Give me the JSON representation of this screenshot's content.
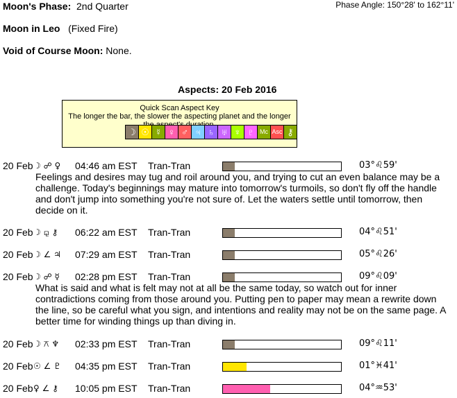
{
  "header": {
    "moon_phase_label": "Moon's Phase:",
    "moon_phase": "2nd Quarter",
    "phase_angle": "Phase Angle:  150°28' to 162°11'",
    "moon_in": "Moon in Leo",
    "moon_in_detail": "(Fixed Fire)",
    "void_label": "Void of Course Moon:",
    "void_value": "None."
  },
  "aspects_title": "Aspects: 20 Feb 2016",
  "key": {
    "title": "Quick Scan Aspect Key",
    "subtitle": "The longer the bar, the slower the aspecting planet and the longer the aspect's duration.",
    "cells": [
      {
        "glyph": "☽",
        "color": "#8b7d6b"
      },
      {
        "glyph": "☉",
        "color": "#ffe600"
      },
      {
        "glyph": "☿",
        "color": "#88aa00"
      },
      {
        "glyph": "♀",
        "color": "#ff5fb0"
      },
      {
        "glyph": "♂",
        "color": "#ff6060"
      },
      {
        "glyph": "♃",
        "color": "#80d0ff"
      },
      {
        "glyph": "♄",
        "color": "#9966ff"
      },
      {
        "glyph": "♅",
        "color": "#cc66ff"
      },
      {
        "glyph": "♆",
        "color": "#aaff00"
      },
      {
        "glyph": "♇",
        "color": "#ff66ff"
      },
      {
        "glyph": "Mc",
        "color": "#88aa00"
      },
      {
        "glyph": "Asc",
        "color": "#ff5050"
      },
      {
        "glyph": "⚷",
        "color": "#88aa00"
      }
    ]
  },
  "aspects": [
    {
      "date": "20 Feb",
      "glyphs": "☽ ☍ ♀",
      "time": "04:46 am EST",
      "type": "Tran-Tran",
      "bar_fraction": 0.1,
      "bar_color": "#8b7d6b",
      "position": "03°♌59'",
      "description": "Feelings and desires may tug and roil around you, and trying to cut an even balance may be a challenge. Today's beginnings may mature into tomorrow's turmoils, so don't fly off the handle and don't jump into something you're not sure of. Let the waters settle until tomorrow, then decide on it."
    },
    {
      "date": "20 Feb",
      "glyphs": "☽ ⚼ ⚷",
      "time": "06:22 am EST",
      "type": "Tran-Tran",
      "bar_fraction": 0.1,
      "bar_color": "#8b7d6b",
      "position": "04°♌51'"
    },
    {
      "date": "20 Feb",
      "glyphs": "☽ ∠ ♃",
      "time": "07:29 am EST",
      "type": "Tran-Tran",
      "bar_fraction": 0.1,
      "bar_color": "#8b7d6b",
      "position": "05°♌26'"
    },
    {
      "date": "20 Feb",
      "glyphs": "☽ ☍ ☿",
      "time": "02:28 pm EST",
      "type": "Tran-Tran",
      "bar_fraction": 0.1,
      "bar_color": "#8b7d6b",
      "position": "09°♌09'",
      "description": "What is said and what is felt may not at all be the same today, so watch out for inner contradictions coming from those around you. Putting pen to paper may mean a rewrite down the line, so be careful what you sign, and intentions and reality may not be on the same page. A better time for winding things up than diving in."
    },
    {
      "date": "20 Feb",
      "glyphs": "☽ ⚻ ♆",
      "time": "02:33 pm EST",
      "type": "Tran-Tran",
      "bar_fraction": 0.1,
      "bar_color": "#8b7d6b",
      "position": "09°♌11'"
    },
    {
      "date": "20 Feb",
      "glyphs": "☉ ∠ ♇",
      "time": "04:35 pm EST",
      "type": "Tran-Tran",
      "bar_fraction": 0.2,
      "bar_color": "#ffe600",
      "position": "01°♓41'"
    },
    {
      "date": "20 Feb",
      "glyphs": "♀ ∠ ⚷",
      "time": "10:05 pm EST",
      "type": "Tran-Tran",
      "bar_fraction": 0.4,
      "bar_color": "#ff5fb0",
      "position": "04°♒53'"
    }
  ]
}
